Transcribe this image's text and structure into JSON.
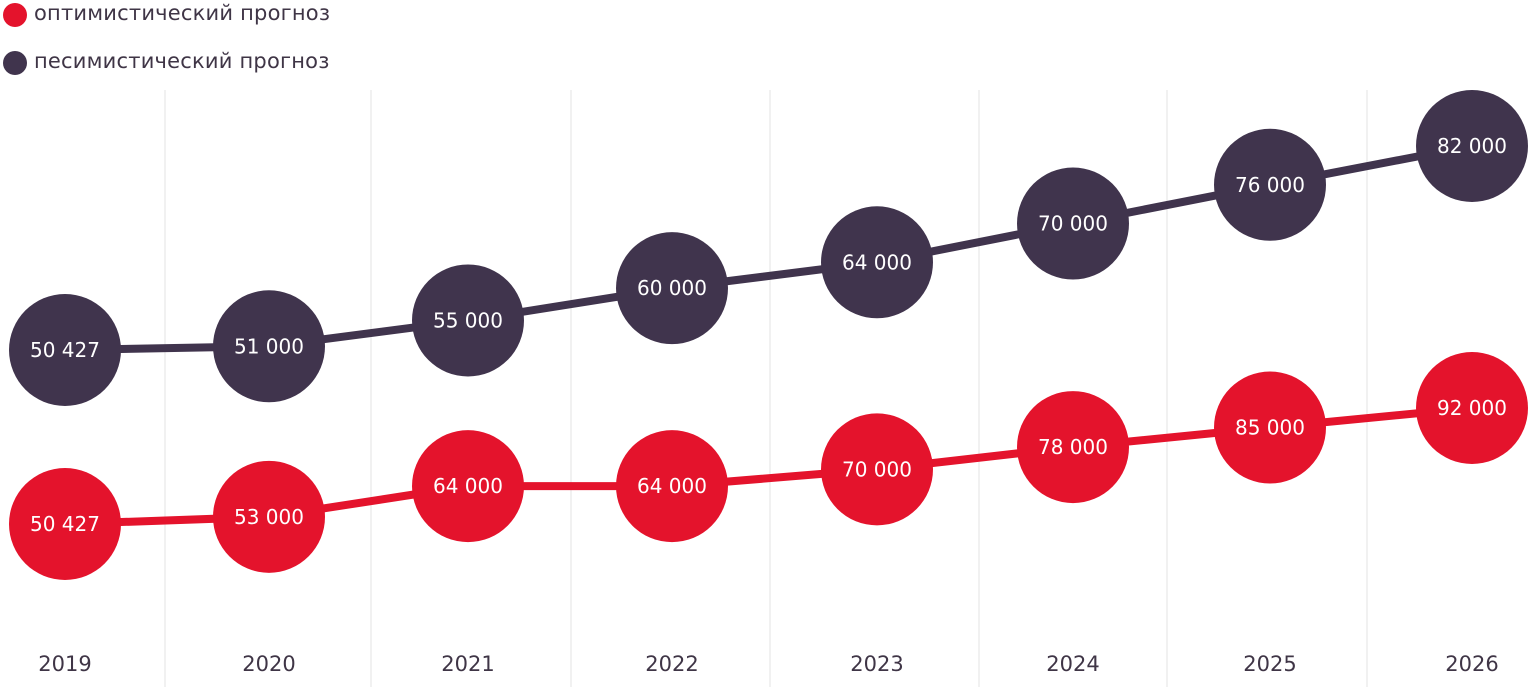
{
  "legend": [
    {
      "label": "оптимистический прогноз",
      "color": "#e4132c"
    },
    {
      "label": "песимистический прогноз",
      "color": "#40344d"
    }
  ],
  "chart_data": {
    "type": "line",
    "x": [
      "2019",
      "2020",
      "2021",
      "2022",
      "2023",
      "2024",
      "2025",
      "2026"
    ],
    "grid": true,
    "legend_position": "top-left",
    "series": [
      {
        "name": "оптимистический прогноз",
        "color": "#e4132c",
        "values": [
          50427,
          53000,
          64000,
          64000,
          70000,
          78000,
          85000,
          92000
        ],
        "labels": [
          "50 427",
          "53 000",
          "64 000",
          "64 000",
          "70 000",
          "78 000",
          "85 000",
          "92 000"
        ]
      },
      {
        "name": "песимистический прогноз",
        "color": "#40344d",
        "values": [
          50427,
          51000,
          55000,
          60000,
          64000,
          70000,
          76000,
          82000
        ],
        "labels": [
          "50 427",
          "51 000",
          "55 000",
          "60 000",
          "64 000",
          "70 000",
          "76 000",
          "82 000"
        ]
      }
    ]
  }
}
